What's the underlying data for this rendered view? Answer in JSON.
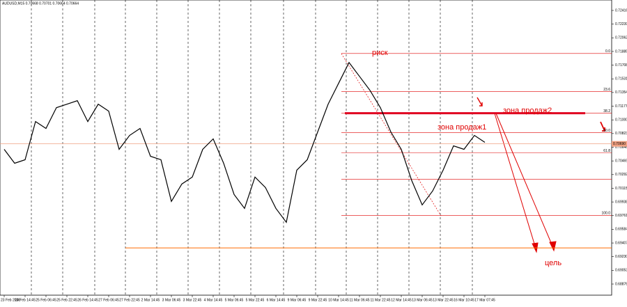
{
  "chart_data": {
    "type": "line",
    "title": "AUDUSD,M15 0.70668 0.70701 0.70664 0.70664",
    "categories": [
      "23 Feb 2026",
      null,
      "24 Feb 14:45",
      null,
      "25 Feb 06:45",
      null,
      "25 Feb 22:45",
      null,
      "26 Feb 14:45",
      null,
      "27 Feb 06:45",
      null,
      "27 Feb 22:45",
      null,
      "2 Mar 14:45",
      null,
      "3 Mar 06:45",
      null,
      "3 Mar 22:45",
      null,
      "4 Mar 14:45",
      null,
      "5 Mar 06:45",
      null,
      "5 Mar 22:45",
      null,
      "6 Mar 14:45",
      null,
      "9 Mar 06:45",
      null,
      "9 Mar 22:45",
      null,
      "10 Mar 14:45",
      null,
      "11 Mar 06:45",
      null,
      "11 Mar 22:45",
      null,
      "12 Mar 14:45",
      null,
      "13 Mar 06:45",
      null,
      "13 Mar 22:45",
      null,
      "16 Mar 10:45",
      null,
      "17 Mar 07:45"
    ],
    "values": [
      0.70619,
      0.70439,
      0.70484,
      0.70978,
      0.70889,
      0.71158,
      0.71203,
      0.71248,
      0.70978,
      0.71203,
      0.71113,
      0.70619,
      0.70799,
      0.70889,
      0.70529,
      0.70484,
      0.69945,
      0.7017,
      0.7026,
      0.70619,
      0.70754,
      0.70439,
      0.70035,
      0.69855,
      0.7026,
      0.70125,
      0.69855,
      0.69675,
      0.70349,
      0.70484,
      0.70844,
      0.71203,
      0.71473,
      0.71742,
      0.71563,
      0.71383,
      0.71158,
      0.70844,
      0.70619,
      0.70215,
      0.699,
      0.7008,
      0.70349,
      0.70664,
      0.70619,
      0.70799,
      0.70709
    ],
    "color": "#000000",
    "ylim": [
      0.68732,
      0.72551
    ],
    "yticks": [
      0.72416,
      0.72239,
      0.72062,
      0.71885,
      0.71708,
      0.71531,
      0.71354,
      0.71177,
      {
        "value": 0.71,
        "label": "0.71000"
      },
      0.70823,
      0.70646,
      0.70469,
      0.70292,
      0.70115,
      0.69938,
      0.69761,
      0.69584,
      0.69407,
      {
        "value": 0.6923,
        "label": "0.69230"
      },
      0.69053,
      0.68876
    ],
    "current_price": {
      "value": 0.7069,
      "label": "0.70690"
    },
    "fib_levels": [
      {
        "label": "0.0",
        "price": 0.71859
      },
      {
        "label": "23.6",
        "price": 0.71365
      },
      {
        "label": "38.2",
        "price": 0.71086
      },
      {
        "label": "50.0",
        "price": 0.70835
      },
      {
        "label": "61.8",
        "price": 0.70574
      },
      {
        "label": null,
        "price": 0.70233
      },
      {
        "label": "100.0",
        "price": 0.69765
      }
    ],
    "sell_zone_price": 0.71086,
    "support_price": 0.69343,
    "annotations": {
      "risk": "риск",
      "zone2": "зона продаж2",
      "zone1": "зона продаж1",
      "target": "цель"
    }
  }
}
